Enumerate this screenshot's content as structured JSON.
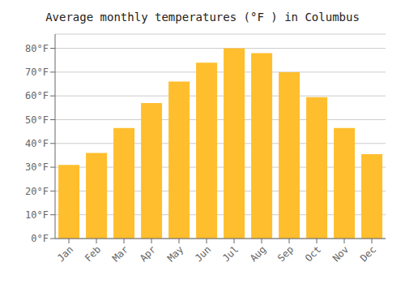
{
  "chart_data": {
    "type": "bar",
    "title": "Average monthly temperatures (°F ) in Columbus",
    "categories": [
      "Jan",
      "Feb",
      "Mar",
      "Apr",
      "May",
      "Jun",
      "Jul",
      "Aug",
      "Sep",
      "Oct",
      "Nov",
      "Dec"
    ],
    "values": [
      31,
      36,
      46.5,
      57,
      66,
      74,
      80,
      78,
      70,
      59.5,
      46.5,
      35.5
    ],
    "color": "#FFBE2D",
    "ylim": [
      0,
      86
    ],
    "yticks": [
      {
        "value": 0,
        "label": "0°F"
      },
      {
        "value": 10,
        "label": "10°F"
      },
      {
        "value": 20,
        "label": "20°F"
      },
      {
        "value": 30,
        "label": "30°F"
      },
      {
        "value": 40,
        "label": "40°F"
      },
      {
        "value": 50,
        "label": "50°F"
      },
      {
        "value": 60,
        "label": "60°F"
      },
      {
        "value": 70,
        "label": "70°F"
      },
      {
        "value": 80,
        "label": "80°F"
      }
    ],
    "grid": true
  }
}
